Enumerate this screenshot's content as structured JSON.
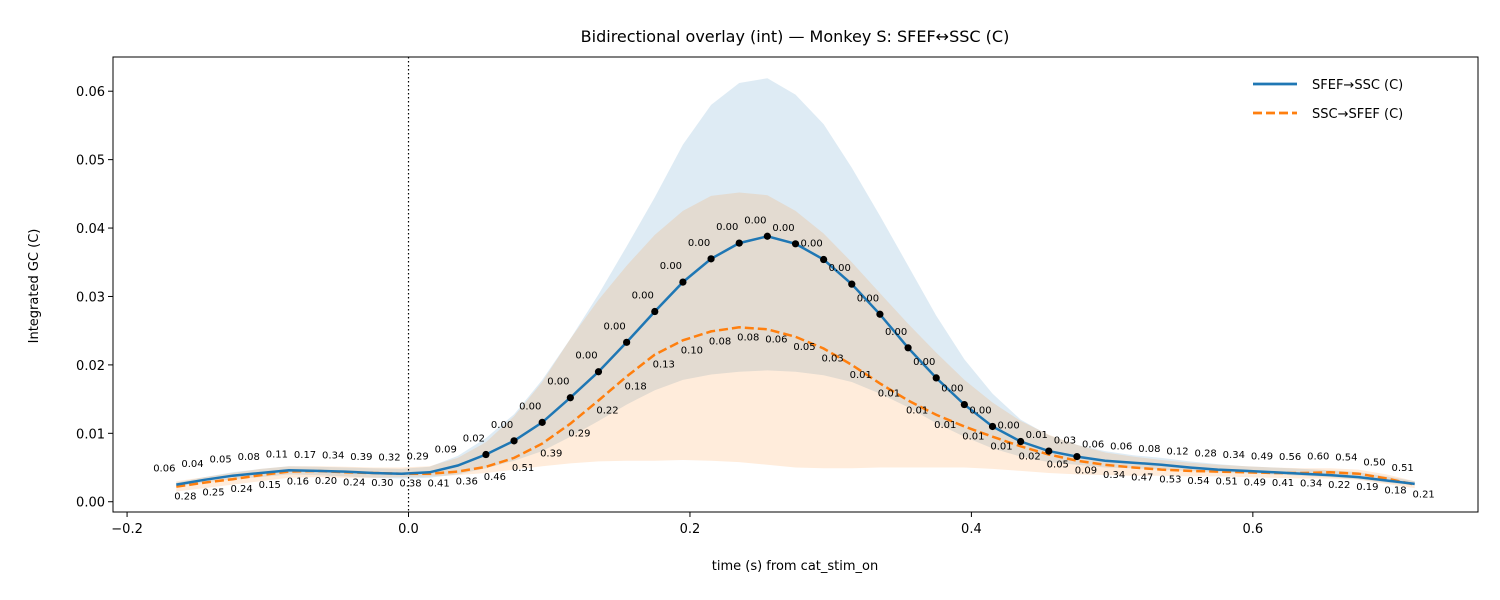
{
  "chart_data": {
    "type": "line",
    "title": "Bidirectional overlay (int) — Monkey S: SFEF↔SSC (C)",
    "xlabel": "time (s) from cat_stim_on",
    "ylabel": "Integrated GC (C)",
    "xlim": [
      -0.21,
      0.76
    ],
    "ylim": [
      -0.0015,
      0.065
    ],
    "xticks": [
      -0.2,
      0.0,
      0.2,
      0.4,
      0.6
    ],
    "xtick_labels": [
      "−0.2",
      "0.0",
      "0.2",
      "0.4",
      "0.6"
    ],
    "yticks": [
      0.0,
      0.01,
      0.02,
      0.03,
      0.04,
      0.05,
      0.06
    ],
    "ytick_labels": [
      "0.00",
      "0.01",
      "0.02",
      "0.03",
      "0.04",
      "0.05",
      "0.06"
    ],
    "grid": false,
    "legend_position": "top-right",
    "vline_x": 0.0,
    "x": [
      -0.165,
      -0.145,
      -0.125,
      -0.105,
      -0.085,
      -0.065,
      -0.045,
      -0.025,
      -0.005,
      0.015,
      0.035,
      0.055,
      0.075,
      0.095,
      0.115,
      0.135,
      0.155,
      0.175,
      0.195,
      0.215,
      0.235,
      0.255,
      0.275,
      0.295,
      0.315,
      0.335,
      0.355,
      0.375,
      0.395,
      0.415,
      0.435,
      0.455,
      0.475,
      0.495,
      0.515,
      0.535,
      0.555,
      0.575,
      0.595,
      0.615,
      0.635,
      0.655,
      0.675,
      0.695,
      0.715
    ],
    "series": [
      {
        "name": "SFEF→SSC (C)",
        "color": "#1f77b4",
        "style": "solid",
        "values": [
          0.0025,
          0.0032,
          0.0038,
          0.0042,
          0.0046,
          0.0045,
          0.0044,
          0.0042,
          0.0041,
          0.0043,
          0.0053,
          0.0069,
          0.0089,
          0.0116,
          0.0152,
          0.019,
          0.0233,
          0.0278,
          0.0321,
          0.0355,
          0.0378,
          0.0388,
          0.0377,
          0.0354,
          0.0318,
          0.0274,
          0.0225,
          0.0181,
          0.0142,
          0.011,
          0.0088,
          0.0074,
          0.0066,
          0.006,
          0.0057,
          0.0054,
          0.005,
          0.0047,
          0.0045,
          0.0043,
          0.0041,
          0.0039,
          0.0036,
          0.0031,
          0.0026
        ],
        "band_lower": [
          0.0022,
          0.0028,
          0.0033,
          0.0036,
          0.004,
          0.0039,
          0.0037,
          0.0035,
          0.0034,
          0.0035,
          0.004,
          0.0049,
          0.006,
          0.0074,
          0.0095,
          0.0118,
          0.0142,
          0.0163,
          0.0178,
          0.0186,
          0.019,
          0.0192,
          0.019,
          0.0185,
          0.0175,
          0.0158,
          0.0138,
          0.0115,
          0.0095,
          0.0078,
          0.0066,
          0.0058,
          0.0054,
          0.005,
          0.0049,
          0.0047,
          0.0045,
          0.0043,
          0.0042,
          0.004,
          0.0038,
          0.0036,
          0.0033,
          0.0028,
          0.0024
        ],
        "band_upper": [
          0.0028,
          0.0036,
          0.0043,
          0.0048,
          0.0052,
          0.0051,
          0.005,
          0.0049,
          0.0048,
          0.0051,
          0.0067,
          0.0093,
          0.0128,
          0.0178,
          0.0238,
          0.0303,
          0.0373,
          0.0445,
          0.0522,
          0.058,
          0.0612,
          0.0619,
          0.0595,
          0.0552,
          0.0488,
          0.0418,
          0.0345,
          0.0272,
          0.0208,
          0.0158,
          0.012,
          0.0097,
          0.0083,
          0.0074,
          0.0068,
          0.0064,
          0.0059,
          0.0055,
          0.0052,
          0.005,
          0.0048,
          0.0046,
          0.0043,
          0.0037,
          0.003
        ]
      },
      {
        "name": "SSC→SFEF (C)",
        "color": "#ff7f0e",
        "style": "dashed",
        "values": [
          0.0022,
          0.0028,
          0.0033,
          0.0039,
          0.0044,
          0.0045,
          0.0043,
          0.0042,
          0.0041,
          0.0041,
          0.0044,
          0.0051,
          0.0064,
          0.0085,
          0.0114,
          0.0148,
          0.0183,
          0.0215,
          0.0236,
          0.0249,
          0.0255,
          0.0252,
          0.0241,
          0.0224,
          0.02,
          0.0173,
          0.0148,
          0.0127,
          0.011,
          0.0095,
          0.0081,
          0.0069,
          0.006,
          0.0054,
          0.005,
          0.0047,
          0.0045,
          0.0044,
          0.0043,
          0.0042,
          0.0042,
          0.0043,
          0.0041,
          0.0034,
          0.0025
        ],
        "band_lower": [
          0.0015,
          0.002,
          0.0025,
          0.003,
          0.0035,
          0.0036,
          0.0035,
          0.0035,
          0.0036,
          0.0037,
          0.0039,
          0.0042,
          0.0047,
          0.0052,
          0.0056,
          0.0059,
          0.006,
          0.006,
          0.0061,
          0.006,
          0.0058,
          0.0054,
          0.005,
          0.0049,
          0.0049,
          0.005,
          0.005,
          0.005,
          0.005,
          0.0048,
          0.0045,
          0.0042,
          0.004,
          0.0039,
          0.0038,
          0.0038,
          0.0037,
          0.0037,
          0.0036,
          0.0035,
          0.0034,
          0.0034,
          0.0032,
          0.0026,
          0.002
        ],
        "band_upper": [
          0.003,
          0.0036,
          0.0042,
          0.0048,
          0.0052,
          0.0052,
          0.0051,
          0.005,
          0.005,
          0.0052,
          0.0064,
          0.0087,
          0.0125,
          0.0175,
          0.0238,
          0.0295,
          0.0345,
          0.039,
          0.0425,
          0.0447,
          0.0452,
          0.0448,
          0.0425,
          0.0392,
          0.035,
          0.0305,
          0.026,
          0.0218,
          0.0178,
          0.0145,
          0.0118,
          0.0098,
          0.0083,
          0.0072,
          0.0066,
          0.0061,
          0.0057,
          0.0054,
          0.0052,
          0.005,
          0.0049,
          0.0049,
          0.0047,
          0.004,
          0.003
        ]
      }
    ],
    "significant_x": [
      0.055,
      0.075,
      0.095,
      0.115,
      0.135,
      0.155,
      0.175,
      0.195,
      0.215,
      0.235,
      0.255,
      0.275,
      0.295,
      0.315,
      0.335,
      0.355,
      0.375,
      0.395,
      0.415,
      0.435,
      0.455,
      0.475
    ],
    "annotations_upper": [
      "0.06",
      "0.04",
      "0.05",
      "0.08",
      "0.11",
      "0.17",
      "0.34",
      "0.39",
      "0.32",
      "0.29",
      "0.09",
      "0.02",
      "0.00",
      "0.00",
      "0.00",
      "0.00",
      "0.00",
      "0.00",
      "0.00",
      "0.00",
      "0.00",
      "0.00",
      "0.00",
      "0.00",
      "0.00",
      "0.00",
      "0.00",
      "0.00",
      "0.00",
      "0.00",
      "0.00",
      "0.01",
      "0.03",
      "0.06",
      "0.06",
      "0.08",
      "0.12",
      "0.28",
      "0.34",
      "0.49",
      "0.56",
      "0.60",
      "0.54",
      "0.50",
      "0.51"
    ],
    "annotations_lower": [
      "0.28",
      "0.25",
      "0.24",
      "0.15",
      "0.16",
      "0.20",
      "0.24",
      "0.30",
      "0.38",
      "0.41",
      "0.36",
      "0.46",
      "0.51",
      "0.39",
      "0.29",
      "0.22",
      "0.18",
      "0.13",
      "0.10",
      "0.08",
      "0.08",
      "0.06",
      "0.05",
      "0.03",
      "0.01",
      "0.01",
      "0.01",
      "0.01",
      "0.01",
      "0.01",
      "0.02",
      "0.05",
      "0.09",
      "0.34",
      "0.47",
      "0.53",
      "0.54",
      "0.51",
      "0.49",
      "0.41",
      "0.34",
      "0.22",
      "0.19",
      "0.18",
      "0.21"
    ]
  }
}
